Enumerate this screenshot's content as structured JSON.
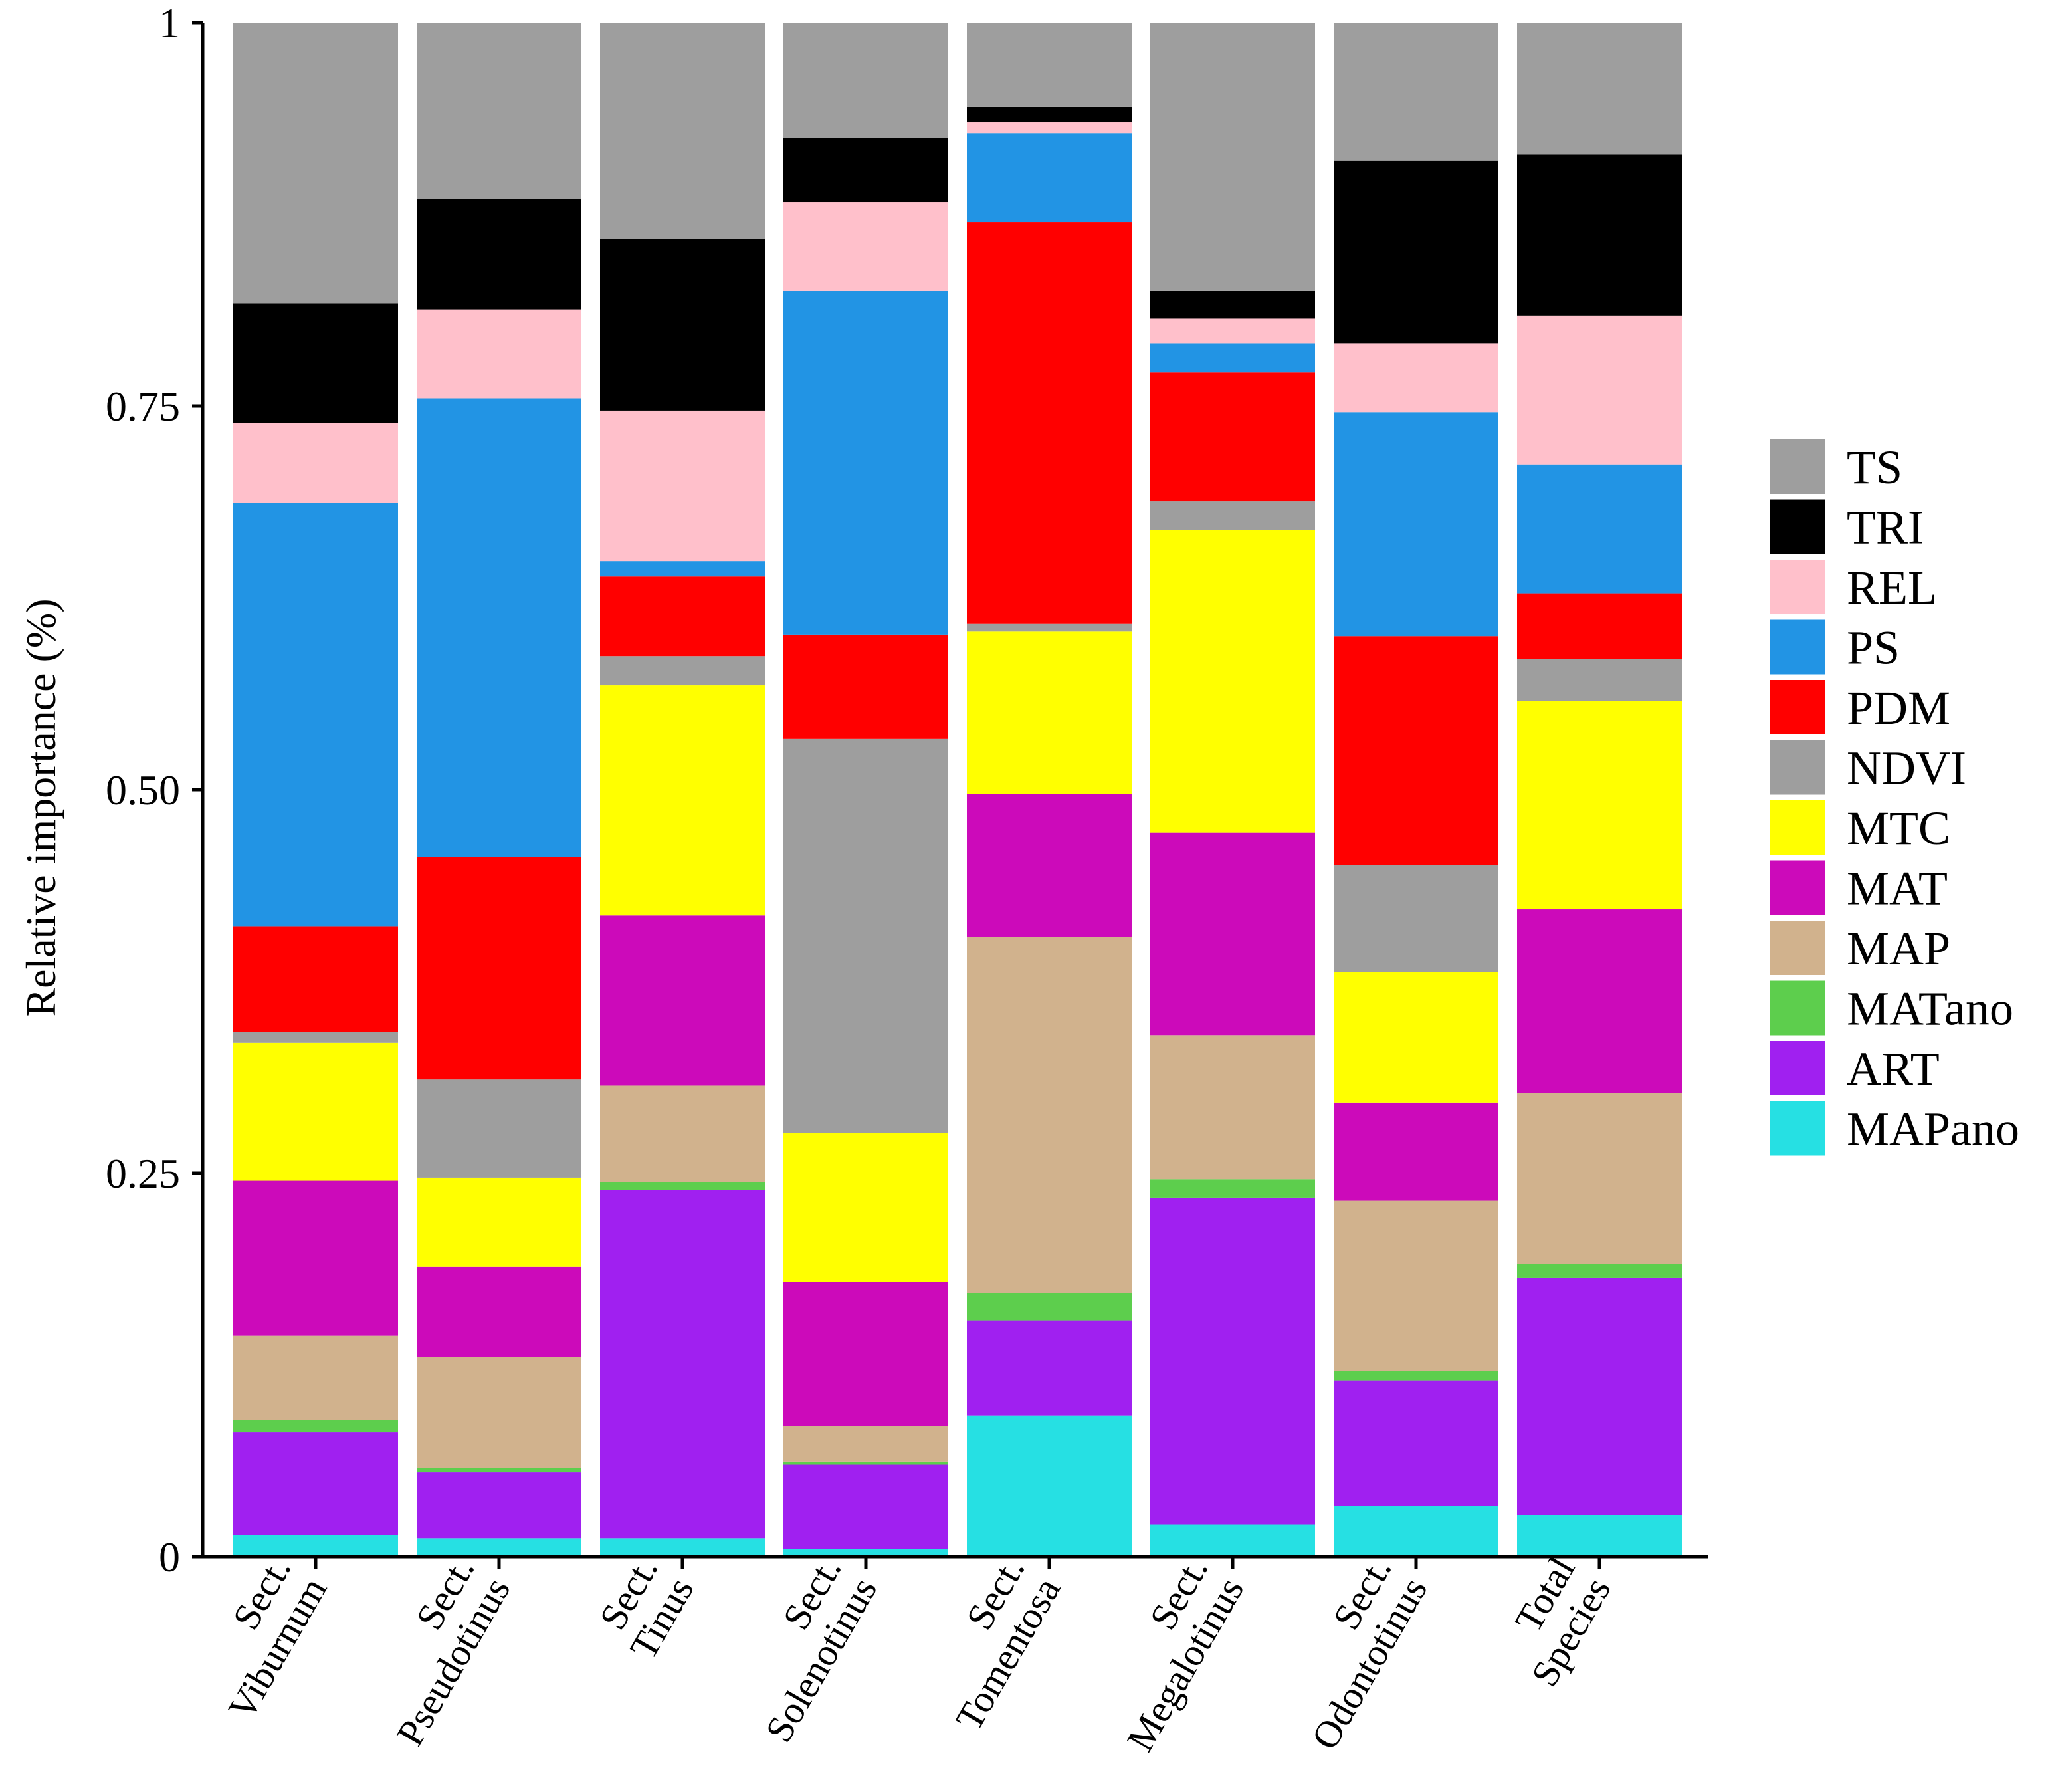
{
  "chart_data": {
    "type": "bar",
    "stacked": true,
    "title": "",
    "xlabel": "",
    "ylabel": "Relative importance (%)",
    "ylim": [
      0,
      1
    ],
    "yticks": [
      {
        "value": 0,
        "label": "0"
      },
      {
        "value": 0.25,
        "label": "0.25"
      },
      {
        "value": 0.5,
        "label": "0.50"
      },
      {
        "value": 0.75,
        "label": "0.75"
      },
      {
        "value": 1,
        "label": "1"
      }
    ],
    "categories": [
      [
        "Sect.",
        "Viburnum"
      ],
      [
        "Sect.",
        "Pseudotinus"
      ],
      [
        "Sect.",
        "Tinus"
      ],
      [
        "Sect.",
        "Solenotinus"
      ],
      [
        "Sect.",
        "Tomentosa"
      ],
      [
        "Sect.",
        "Megalotinus"
      ],
      [
        "Sect.",
        "Odontotinus"
      ],
      [
        "Total",
        "Species"
      ]
    ],
    "legend_position": "right",
    "series": [
      {
        "name": "MAPano",
        "color": "#26E0E3",
        "values": [
          0.014,
          0.012,
          0.012,
          0.005,
          0.092,
          0.021,
          0.033,
          0.027
        ]
      },
      {
        "name": "ART",
        "color": "#A020F0",
        "values": [
          0.067,
          0.043,
          0.227,
          0.055,
          0.062,
          0.213,
          0.082,
          0.155
        ]
      },
      {
        "name": "MATano",
        "color": "#5DCE4D",
        "values": [
          0.008,
          0.003,
          0.005,
          0.002,
          0.018,
          0.012,
          0.006,
          0.009
        ]
      },
      {
        "name": "MAP",
        "color": "#D1B28D",
        "values": [
          0.055,
          0.072,
          0.063,
          0.023,
          0.232,
          0.094,
          0.111,
          0.111
        ]
      },
      {
        "name": "MAT",
        "color": "#CC0ABA",
        "values": [
          0.101,
          0.059,
          0.111,
          0.094,
          0.093,
          0.132,
          0.064,
          0.12
        ]
      },
      {
        "name": "MTC",
        "color": "#FFFF00",
        "values": [
          0.09,
          0.058,
          0.15,
          0.097,
          0.106,
          0.197,
          0.085,
          0.136
        ]
      },
      {
        "name": "NDVI",
        "color": "#9E9E9E",
        "values": [
          0.007,
          0.064,
          0.019,
          0.257,
          0.005,
          0.019,
          0.07,
          0.027
        ]
      },
      {
        "name": "PDM",
        "color": "#FF0000",
        "values": [
          0.069,
          0.145,
          0.052,
          0.068,
          0.262,
          0.084,
          0.149,
          0.043
        ]
      },
      {
        "name": "PS",
        "color": "#2294E4",
        "values": [
          0.276,
          0.299,
          0.01,
          0.224,
          0.058,
          0.019,
          0.146,
          0.084
        ]
      },
      {
        "name": "REL",
        "color": "#FFC0CB",
        "values": [
          0.052,
          0.058,
          0.098,
          0.058,
          0.007,
          0.016,
          0.045,
          0.097
        ]
      },
      {
        "name": "TRI",
        "color": "#000000",
        "values": [
          0.078,
          0.072,
          0.112,
          0.042,
          0.01,
          0.018,
          0.119,
          0.105
        ]
      },
      {
        "name": "TS",
        "color": "#9E9E9E",
        "values": [
          0.183,
          0.115,
          0.141,
          0.075,
          0.055,
          0.175,
          0.09,
          0.086
        ]
      }
    ]
  }
}
